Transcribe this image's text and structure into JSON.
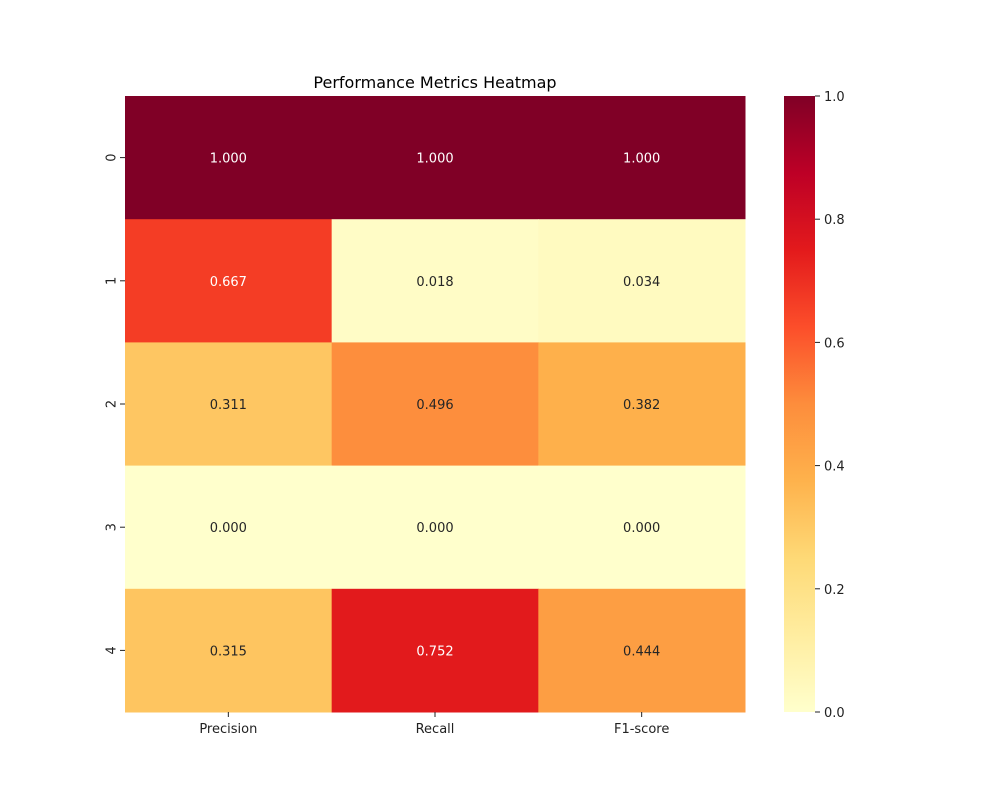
{
  "chart_data": {
    "type": "heatmap",
    "title": "Performance Metrics Heatmap",
    "xlabel": "",
    "ylabel": "",
    "columns": [
      "Precision",
      "Recall",
      "F1-score"
    ],
    "rows": [
      "0",
      "1",
      "2",
      "3",
      "4"
    ],
    "values": [
      [
        1.0,
        1.0,
        1.0
      ],
      [
        0.667,
        0.018,
        0.034
      ],
      [
        0.311,
        0.496,
        0.382
      ],
      [
        0.0,
        0.0,
        0.0
      ],
      [
        0.315,
        0.752,
        0.444
      ]
    ],
    "value_format": "3 decimals",
    "colormap": "YlOrRd",
    "colorbar": {
      "range": [
        0,
        1
      ],
      "ticks": [
        "0.0",
        "0.2",
        "0.4",
        "0.6",
        "0.8",
        "1.0"
      ]
    },
    "colormap_stops": [
      "#ffffcc",
      "#ffeda0",
      "#fed976",
      "#feb24c",
      "#fd8d3c",
      "#fc4e2a",
      "#e31a1c",
      "#bd0026",
      "#800026"
    ],
    "label_colors": {
      "light_text": "#ffffff",
      "dark_text": "#262626"
    }
  }
}
